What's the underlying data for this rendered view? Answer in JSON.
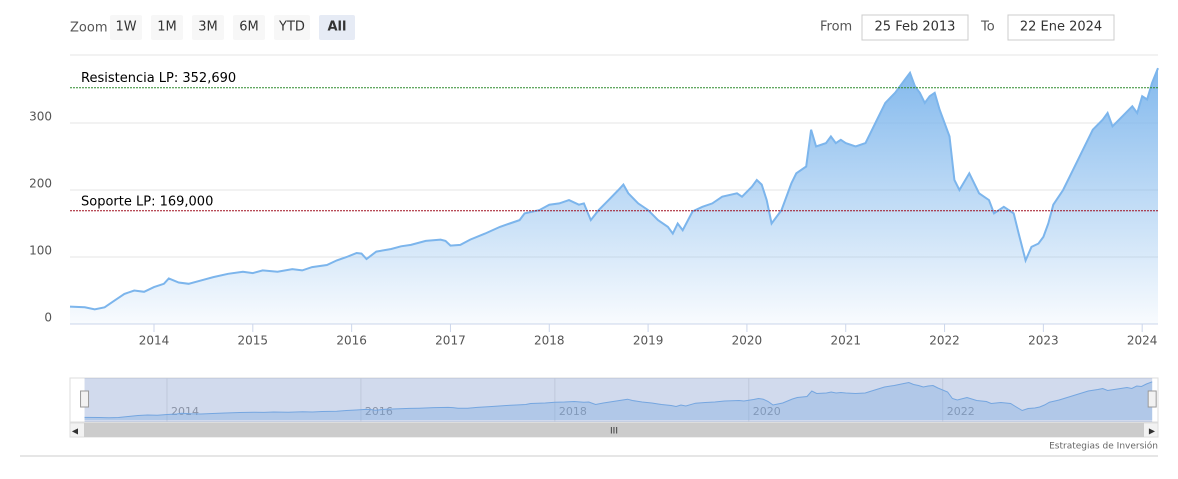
{
  "ui": {
    "zoom_label": "Zoom",
    "buttons": [
      "1W",
      "1M",
      "3M",
      "6M",
      "YTD",
      "All"
    ],
    "selected_button": 5,
    "from_label": "From",
    "from_value": "25 Feb 2013",
    "to_label": "To",
    "to_value": "22 Ene 2024",
    "credit": "Estrategias de Inversión"
  },
  "chart_data": {
    "type": "area",
    "color": "#7cb5ec",
    "x": [
      2013.15,
      2013.3,
      2013.4,
      2013.5,
      2013.6,
      2013.7,
      2013.8,
      2013.9,
      2014.0,
      2014.1,
      2014.15,
      2014.25,
      2014.35,
      2014.5,
      2014.6,
      2014.75,
      2014.9,
      2015.0,
      2015.1,
      2015.25,
      2015.4,
      2015.5,
      2015.6,
      2015.75,
      2015.85,
      2015.95,
      2016.05,
      2016.1,
      2016.15,
      2016.25,
      2016.4,
      2016.5,
      2016.6,
      2016.75,
      2016.9,
      2016.95,
      2017.0,
      2017.1,
      2017.2,
      2017.35,
      2017.5,
      2017.6,
      2017.7,
      2017.75,
      2017.9,
      2018.0,
      2018.1,
      2018.2,
      2018.3,
      2018.35,
      2018.42,
      2018.5,
      2018.6,
      2018.7,
      2018.75,
      2018.8,
      2018.9,
      2019.0,
      2019.1,
      2019.2,
      2019.25,
      2019.3,
      2019.35,
      2019.45,
      2019.55,
      2019.65,
      2019.75,
      2019.9,
      2019.95,
      2020.05,
      2020.1,
      2020.15,
      2020.2,
      2020.25,
      2020.35,
      2020.45,
      2020.5,
      2020.6,
      2020.65,
      2020.7,
      2020.8,
      2020.85,
      2020.9,
      2020.95,
      2021.0,
      2021.1,
      2021.2,
      2021.3,
      2021.4,
      2021.5,
      2021.6,
      2021.65,
      2021.7,
      2021.75,
      2021.8,
      2021.85,
      2021.9,
      2021.95,
      2022.05,
      2022.1,
      2022.15,
      2022.25,
      2022.35,
      2022.45,
      2022.5,
      2022.6,
      2022.7,
      2022.75,
      2022.82,
      2022.88,
      2022.95,
      2023.0,
      2023.05,
      2023.1,
      2023.2,
      2023.3,
      2023.4,
      2023.5,
      2023.6,
      2023.65,
      2023.7,
      2023.8,
      2023.9,
      2023.95,
      2024.0,
      2024.05,
      2024.1,
      2024.16
    ],
    "values": [
      26,
      25,
      22,
      25,
      35,
      45,
      50,
      48,
      55,
      60,
      68,
      62,
      60,
      66,
      70,
      75,
      78,
      76,
      80,
      78,
      82,
      80,
      85,
      88,
      95,
      100,
      106,
      105,
      97,
      108,
      112,
      116,
      118,
      124,
      126,
      124,
      117,
      118,
      126,
      135,
      145,
      150,
      155,
      165,
      170,
      178,
      180,
      185,
      178,
      180,
      155,
      170,
      185,
      200,
      208,
      195,
      180,
      170,
      155,
      145,
      135,
      150,
      140,
      168,
      175,
      180,
      190,
      195,
      190,
      205,
      215,
      208,
      185,
      150,
      170,
      210,
      225,
      235,
      290,
      265,
      270,
      280,
      270,
      275,
      270,
      265,
      270,
      300,
      330,
      345,
      365,
      375,
      355,
      345,
      330,
      340,
      345,
      320,
      280,
      215,
      200,
      225,
      195,
      185,
      165,
      175,
      165,
      135,
      95,
      115,
      120,
      130,
      150,
      178,
      200,
      230,
      260,
      290,
      305,
      315,
      295,
      310,
      325,
      315,
      340,
      335,
      360,
      382
    ],
    "xlim": [
      2013.15,
      2024.16
    ],
    "xticks": [
      2014,
      2015,
      2016,
      2017,
      2018,
      2019,
      2020,
      2021,
      2022,
      2023,
      2024
    ],
    "ylim": [
      0,
      400
    ],
    "yticks": [
      0,
      100,
      200,
      300
    ],
    "grid": true,
    "plot_lines": [
      {
        "value": 352.69,
        "label": "Resistencia LP: 352,690",
        "color": "#2e8b2e"
      },
      {
        "value": 169,
        "label": "Soporte LP: 169,000",
        "color": "#a01020"
      }
    ],
    "navigator": {
      "xlim": [
        2013.0,
        2024.22
      ],
      "xticks": [
        2014,
        2016,
        2018,
        2020,
        2022
      ]
    }
  }
}
